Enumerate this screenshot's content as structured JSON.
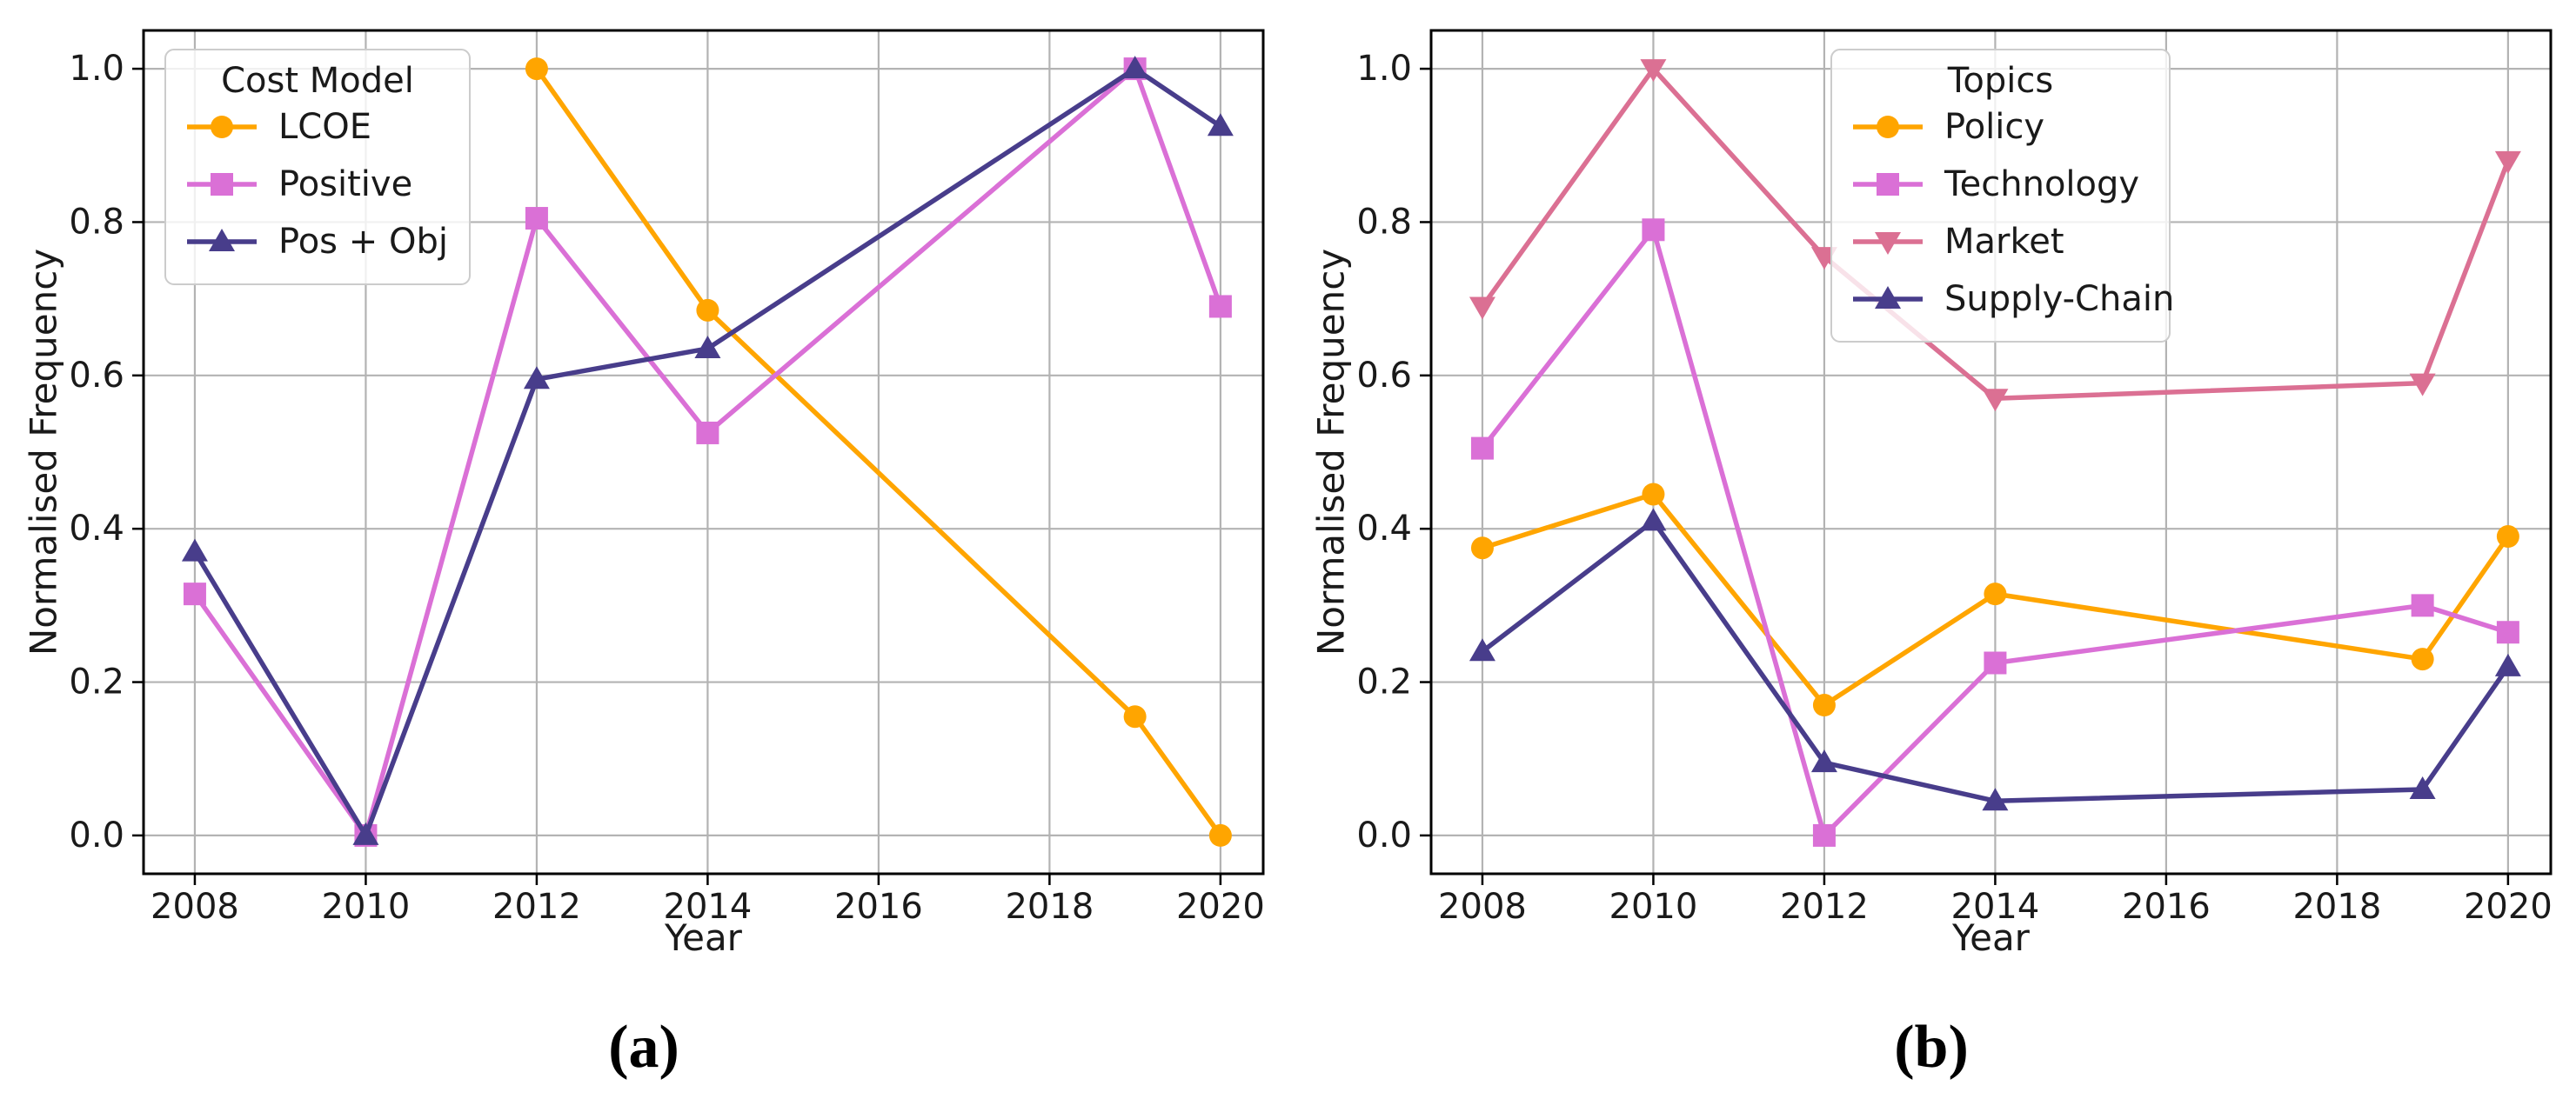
{
  "figure": {
    "caption_a": "(a)",
    "caption_b": "(b)"
  },
  "colors": {
    "orange": "#FFA500",
    "orchid": "#DA70D6",
    "dark_slate_blue": "#483D8B",
    "pale_violet_red": "#DB7093",
    "grid": "#b3b3b3",
    "frame": "#000000",
    "text": "#1a1a1a"
  },
  "chart_data": [
    {
      "id": "a",
      "type": "line",
      "caption": "(a)",
      "xlabel": "Year",
      "ylabel": "Normalised Frequency",
      "xlim": [
        2007.4,
        2020.5
      ],
      "ylim": [
        -0.05,
        1.05
      ],
      "xticks": [
        2008,
        2010,
        2012,
        2014,
        2016,
        2018,
        2020
      ],
      "yticks": [
        0.0,
        0.2,
        0.4,
        0.6,
        0.8,
        1.0
      ],
      "grid": true,
      "legend_title": "Cost Model",
      "legend_loc": "upper-left",
      "series": [
        {
          "name": "LCOE",
          "color": "#FFA500",
          "marker": "circle",
          "x": [
            2012,
            2014,
            2019,
            2020
          ],
          "y": [
            1.0,
            0.685,
            0.155,
            0.0
          ]
        },
        {
          "name": "Positive",
          "color": "#DA70D6",
          "marker": "square",
          "x": [
            2008,
            2010,
            2012,
            2014,
            2019,
            2020
          ],
          "y": [
            0.315,
            0.0,
            0.805,
            0.525,
            1.0,
            0.69
          ]
        },
        {
          "name": "Pos + Obj",
          "color": "#483D8B",
          "marker": "triangle-up",
          "x": [
            2008,
            2010,
            2012,
            2014,
            2019,
            2020
          ],
          "y": [
            0.37,
            0.0,
            0.595,
            0.635,
            1.0,
            0.925
          ]
        }
      ]
    },
    {
      "id": "b",
      "type": "line",
      "caption": "(b)",
      "xlabel": "Year",
      "ylabel": "Normalised Frequency",
      "xlim": [
        2007.4,
        2020.5
      ],
      "ylim": [
        -0.05,
        1.05
      ],
      "xticks": [
        2008,
        2010,
        2012,
        2014,
        2016,
        2018,
        2020
      ],
      "yticks": [
        0.0,
        0.2,
        0.4,
        0.6,
        0.8,
        1.0
      ],
      "grid": true,
      "legend_title": "Topics",
      "legend_loc": "upper-center-right",
      "series": [
        {
          "name": "Policy",
          "color": "#FFA500",
          "marker": "circle",
          "x": [
            2008,
            2010,
            2012,
            2014,
            2019,
            2020
          ],
          "y": [
            0.375,
            0.445,
            0.17,
            0.315,
            0.23,
            0.39
          ]
        },
        {
          "name": "Technology",
          "color": "#DA70D6",
          "marker": "square",
          "x": [
            2008,
            2010,
            2012,
            2014,
            2019,
            2020
          ],
          "y": [
            0.505,
            0.79,
            0.0,
            0.225,
            0.3,
            0.265
          ]
        },
        {
          "name": "Market",
          "color": "#DB7093",
          "marker": "triangle-down",
          "x": [
            2008,
            2010,
            2012,
            2014,
            2019,
            2020
          ],
          "y": [
            0.69,
            1.0,
            0.755,
            0.57,
            0.59,
            0.88
          ]
        },
        {
          "name": "Supply-Chain",
          "color": "#483D8B",
          "marker": "triangle-up",
          "x": [
            2008,
            2010,
            2012,
            2014,
            2019,
            2020
          ],
          "y": [
            0.24,
            0.41,
            0.095,
            0.045,
            0.06,
            0.22
          ]
        }
      ]
    }
  ]
}
